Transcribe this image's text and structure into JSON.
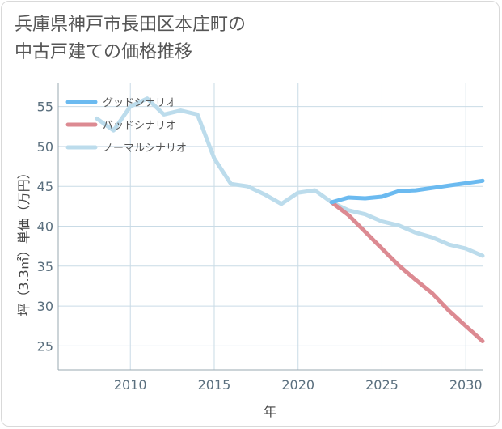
{
  "title_lines": [
    "兵庫県神戸市長田区本庄町の",
    "中古戸建ての価格推移"
  ],
  "colors": {
    "good": "#6bbaf0",
    "bad": "#dc8a92",
    "normal": "#bcdcec",
    "grid": "#c9dbe6",
    "axis": "#9aa8b1"
  },
  "chart_data": {
    "type": "line",
    "title": "兵庫県神戸市長田区本庄町の中古戸建ての価格推移",
    "xlabel": "年",
    "ylabel": "坪（3.3㎡）単価（万円）",
    "xlim": [
      2005.7,
      2031
    ],
    "ylim": [
      22,
      58
    ],
    "xticks": [
      2010,
      2015,
      2020,
      2025,
      2030
    ],
    "yticks": [
      25,
      30,
      35,
      40,
      45,
      50,
      55
    ],
    "grid": true,
    "legend_position": "top-left",
    "series": [
      {
        "name": "グッドシナリオ",
        "color_key": "good",
        "x": [
          2022,
          2023,
          2024,
          2025,
          2026,
          2027,
          2028,
          2029,
          2030,
          2031
        ],
        "y": [
          43.0,
          43.6,
          43.5,
          43.7,
          44.4,
          44.5,
          44.8,
          45.1,
          45.4,
          45.7
        ]
      },
      {
        "name": "バッドシナリオ",
        "color_key": "bad",
        "x": [
          2022,
          2023,
          2024,
          2025,
          2026,
          2027,
          2028,
          2029,
          2030,
          2031
        ],
        "y": [
          43.0,
          41.4,
          39.3,
          37.2,
          35.1,
          33.3,
          31.6,
          29.4,
          27.5,
          25.6
        ]
      },
      {
        "name": "ノーマルシナリオ",
        "color_key": "normal",
        "x": [
          2008,
          2009,
          2010,
          2011,
          2012,
          2013,
          2014,
          2015,
          2016,
          2017,
          2018,
          2019,
          2020,
          2021,
          2022,
          2023,
          2024,
          2025,
          2026,
          2027,
          2028,
          2029,
          2030,
          2031
        ],
        "y": [
          53.5,
          52.0,
          55.0,
          56.0,
          54.0,
          54.5,
          54.0,
          48.5,
          45.3,
          45.0,
          44.0,
          42.8,
          44.2,
          44.5,
          43.0,
          42.0,
          41.5,
          40.6,
          40.1,
          39.2,
          38.6,
          37.7,
          37.2,
          36.3
        ]
      }
    ]
  }
}
